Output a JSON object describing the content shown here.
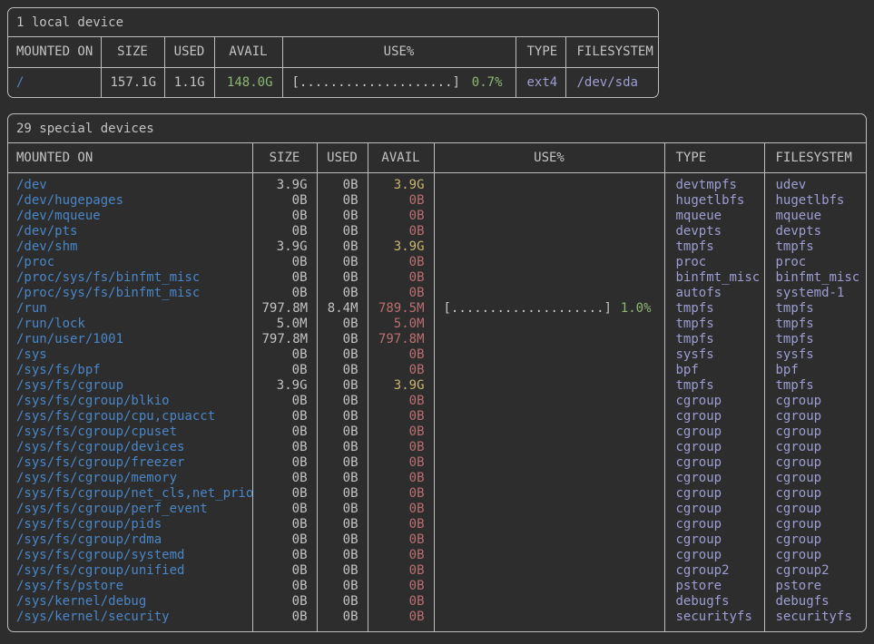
{
  "colors": {
    "bg": "#2d2d2d",
    "border": "#bdbdbd",
    "fg": "#c3c3c3",
    "blue": "#4a86c7",
    "green": "#8db873",
    "yellow": "#c9b56f",
    "red": "#bb6f71",
    "lavender": "#9d9ed2"
  },
  "tables": [
    {
      "title": "1 local device",
      "columns": [
        "MOUNTED ON",
        "SIZE",
        "USED",
        "AVAIL",
        "USE%",
        "TYPE",
        "FILESYSTEM"
      ],
      "rows": [
        {
          "mounted_on": "/",
          "size": "157.1G",
          "used": "1.1G",
          "avail": "148.0G",
          "avail_color": "green",
          "use_bar": "[....................]",
          "use_pct": "0.7%",
          "pct_color": "green",
          "type": "ext4",
          "filesystem": "/dev/sda"
        }
      ]
    },
    {
      "title": "29 special devices",
      "columns": [
        "MOUNTED ON",
        "SIZE",
        "USED",
        "AVAIL",
        "USE%",
        "TYPE",
        "FILESYSTEM"
      ],
      "rows": [
        {
          "mounted_on": "/dev",
          "size": "3.9G",
          "used": "0B",
          "avail": "3.9G",
          "avail_color": "yellow",
          "type": "devtmpfs",
          "filesystem": "udev"
        },
        {
          "mounted_on": "/dev/hugepages",
          "size": "0B",
          "used": "0B",
          "avail": "0B",
          "avail_color": "red",
          "type": "hugetlbfs",
          "filesystem": "hugetlbfs"
        },
        {
          "mounted_on": "/dev/mqueue",
          "size": "0B",
          "used": "0B",
          "avail": "0B",
          "avail_color": "red",
          "type": "mqueue",
          "filesystem": "mqueue"
        },
        {
          "mounted_on": "/dev/pts",
          "size": "0B",
          "used": "0B",
          "avail": "0B",
          "avail_color": "red",
          "type": "devpts",
          "filesystem": "devpts"
        },
        {
          "mounted_on": "/dev/shm",
          "size": "3.9G",
          "used": "0B",
          "avail": "3.9G",
          "avail_color": "yellow",
          "type": "tmpfs",
          "filesystem": "tmpfs"
        },
        {
          "mounted_on": "/proc",
          "size": "0B",
          "used": "0B",
          "avail": "0B",
          "avail_color": "red",
          "type": "proc",
          "filesystem": "proc"
        },
        {
          "mounted_on": "/proc/sys/fs/binfmt_misc",
          "size": "0B",
          "used": "0B",
          "avail": "0B",
          "avail_color": "red",
          "type": "binfmt_misc",
          "filesystem": "binfmt_misc"
        },
        {
          "mounted_on": "/proc/sys/fs/binfmt_misc",
          "size": "0B",
          "used": "0B",
          "avail": "0B",
          "avail_color": "red",
          "type": "autofs",
          "filesystem": "systemd-1"
        },
        {
          "mounted_on": "/run",
          "size": "797.8M",
          "used": "8.4M",
          "avail": "789.5M",
          "avail_color": "red",
          "use_bar": "[....................]",
          "use_pct": "1.0%",
          "pct_color": "green",
          "type": "tmpfs",
          "filesystem": "tmpfs"
        },
        {
          "mounted_on": "/run/lock",
          "size": "5.0M",
          "used": "0B",
          "avail": "5.0M",
          "avail_color": "red",
          "type": "tmpfs",
          "filesystem": "tmpfs"
        },
        {
          "mounted_on": "/run/user/1001",
          "size": "797.8M",
          "used": "0B",
          "avail": "797.8M",
          "avail_color": "red",
          "type": "tmpfs",
          "filesystem": "tmpfs"
        },
        {
          "mounted_on": "/sys",
          "size": "0B",
          "used": "0B",
          "avail": "0B",
          "avail_color": "red",
          "type": "sysfs",
          "filesystem": "sysfs"
        },
        {
          "mounted_on": "/sys/fs/bpf",
          "size": "0B",
          "used": "0B",
          "avail": "0B",
          "avail_color": "red",
          "type": "bpf",
          "filesystem": "bpf"
        },
        {
          "mounted_on": "/sys/fs/cgroup",
          "size": "3.9G",
          "used": "0B",
          "avail": "3.9G",
          "avail_color": "yellow",
          "type": "tmpfs",
          "filesystem": "tmpfs"
        },
        {
          "mounted_on": "/sys/fs/cgroup/blkio",
          "size": "0B",
          "used": "0B",
          "avail": "0B",
          "avail_color": "red",
          "type": "cgroup",
          "filesystem": "cgroup"
        },
        {
          "mounted_on": "/sys/fs/cgroup/cpu,cpuacct",
          "size": "0B",
          "used": "0B",
          "avail": "0B",
          "avail_color": "red",
          "type": "cgroup",
          "filesystem": "cgroup"
        },
        {
          "mounted_on": "/sys/fs/cgroup/cpuset",
          "size": "0B",
          "used": "0B",
          "avail": "0B",
          "avail_color": "red",
          "type": "cgroup",
          "filesystem": "cgroup"
        },
        {
          "mounted_on": "/sys/fs/cgroup/devices",
          "size": "0B",
          "used": "0B",
          "avail": "0B",
          "avail_color": "red",
          "type": "cgroup",
          "filesystem": "cgroup"
        },
        {
          "mounted_on": "/sys/fs/cgroup/freezer",
          "size": "0B",
          "used": "0B",
          "avail": "0B",
          "avail_color": "red",
          "type": "cgroup",
          "filesystem": "cgroup"
        },
        {
          "mounted_on": "/sys/fs/cgroup/memory",
          "size": "0B",
          "used": "0B",
          "avail": "0B",
          "avail_color": "red",
          "type": "cgroup",
          "filesystem": "cgroup"
        },
        {
          "mounted_on": "/sys/fs/cgroup/net_cls,net_prio",
          "size": "0B",
          "used": "0B",
          "avail": "0B",
          "avail_color": "red",
          "type": "cgroup",
          "filesystem": "cgroup"
        },
        {
          "mounted_on": "/sys/fs/cgroup/perf_event",
          "size": "0B",
          "used": "0B",
          "avail": "0B",
          "avail_color": "red",
          "type": "cgroup",
          "filesystem": "cgroup"
        },
        {
          "mounted_on": "/sys/fs/cgroup/pids",
          "size": "0B",
          "used": "0B",
          "avail": "0B",
          "avail_color": "red",
          "type": "cgroup",
          "filesystem": "cgroup"
        },
        {
          "mounted_on": "/sys/fs/cgroup/rdma",
          "size": "0B",
          "used": "0B",
          "avail": "0B",
          "avail_color": "red",
          "type": "cgroup",
          "filesystem": "cgroup"
        },
        {
          "mounted_on": "/sys/fs/cgroup/systemd",
          "size": "0B",
          "used": "0B",
          "avail": "0B",
          "avail_color": "red",
          "type": "cgroup",
          "filesystem": "cgroup"
        },
        {
          "mounted_on": "/sys/fs/cgroup/unified",
          "size": "0B",
          "used": "0B",
          "avail": "0B",
          "avail_color": "red",
          "type": "cgroup2",
          "filesystem": "cgroup2"
        },
        {
          "mounted_on": "/sys/fs/pstore",
          "size": "0B",
          "used": "0B",
          "avail": "0B",
          "avail_color": "red",
          "type": "pstore",
          "filesystem": "pstore"
        },
        {
          "mounted_on": "/sys/kernel/debug",
          "size": "0B",
          "used": "0B",
          "avail": "0B",
          "avail_color": "red",
          "type": "debugfs",
          "filesystem": "debugfs"
        },
        {
          "mounted_on": "/sys/kernel/security",
          "size": "0B",
          "used": "0B",
          "avail": "0B",
          "avail_color": "red",
          "type": "securityfs",
          "filesystem": "securityfs"
        }
      ]
    }
  ]
}
